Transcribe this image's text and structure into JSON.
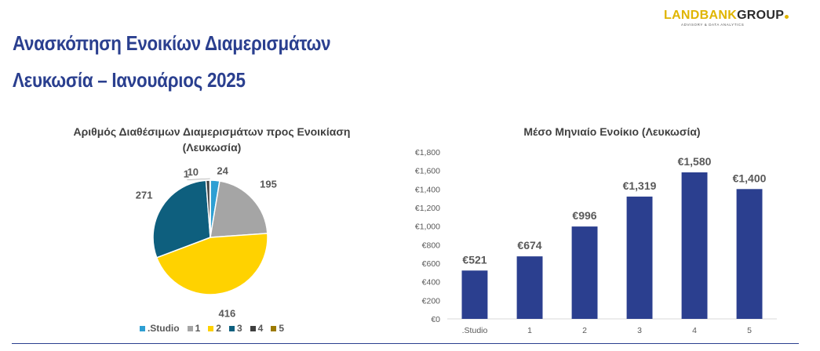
{
  "slide": {
    "title_line1": "Ανασκόπηση Ενοικίων Διαμερισμάτων",
    "title_line2": "Λευκωσία – Ιανουάριος 2025"
  },
  "logo": {
    "brand_part1": "LANDBANK",
    "brand_part2": "GROUP",
    "tagline": "ADVISORY & DATA ANALYTICS",
    "accent_color": "#e0b500"
  },
  "chart_data": [
    {
      "type": "pie",
      "title": "Αριθμός Διαθέσιμων Διαμερισμάτων προς Ενοικίαση (Λευκωσία)",
      "categories": [
        ".Studio",
        "1",
        "2",
        "3",
        "4",
        "5"
      ],
      "values": [
        24,
        195,
        416,
        271,
        10,
        1
      ],
      "colors": [
        "#2e9fd3",
        "#a5a5a5",
        "#ffd200",
        "#0e5f7e",
        "#3f3f3f",
        "#9c7a00"
      ],
      "legend_position": "bottom",
      "data_labels": true
    },
    {
      "type": "bar",
      "title": "Μέσο Μηνιαίο Ενοίκιο (Λευκωσία)",
      "categories": [
        ".Studio",
        "1",
        "2",
        "3",
        "4",
        "5"
      ],
      "values": [
        521,
        674,
        996,
        1319,
        1580,
        1400
      ],
      "value_labels": [
        "€521",
        "€674",
        "€996",
        "€1,319",
        "€1,580",
        "€1,400"
      ],
      "ylim": [
        0,
        1800
      ],
      "y_ticks": [
        "€0",
        "€200",
        "€400",
        "€600",
        "€800",
        "€1,000",
        "€1,200",
        "€1,400",
        "€1,600",
        "€1,800"
      ],
      "bar_color": "#2b3f8f",
      "grid": false,
      "legend_position": "none"
    }
  ],
  "colors": {
    "title": "#2a3f8f",
    "rule": "#2a3f8f"
  }
}
